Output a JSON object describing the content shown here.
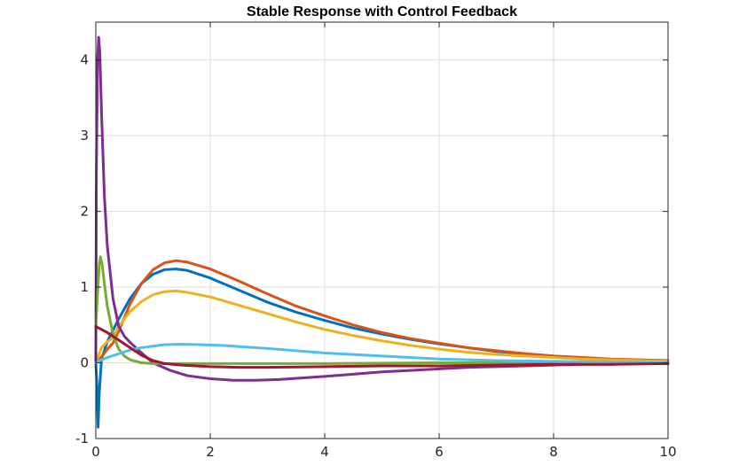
{
  "chart_data": {
    "type": "line",
    "title": "Stable Response with Control Feedback",
    "xlabel": "",
    "ylabel": "",
    "xlim": [
      0,
      10
    ],
    "ylim": [
      -1,
      4.5
    ],
    "xticks": [
      0,
      2,
      4,
      6,
      8,
      10
    ],
    "yticks": [
      -1,
      0,
      1,
      2,
      3,
      4
    ],
    "grid": true,
    "colors": [
      "#0072BD",
      "#D95319",
      "#EDB120",
      "#7E2F8E",
      "#77AC30",
      "#4DBEEE",
      "#A2142F"
    ],
    "series": [
      {
        "color": "#0072BD",
        "points": [
          [
            0,
            0
          ],
          [
            0.02,
            -0.3
          ],
          [
            0.04,
            -0.85
          ],
          [
            0.06,
            -0.4
          ],
          [
            0.1,
            0.05
          ],
          [
            0.2,
            0.28
          ],
          [
            0.4,
            0.58
          ],
          [
            0.6,
            0.85
          ],
          [
            0.8,
            1.05
          ],
          [
            1.0,
            1.17
          ],
          [
            1.2,
            1.23
          ],
          [
            1.4,
            1.24
          ],
          [
            1.6,
            1.22
          ],
          [
            2.0,
            1.12
          ],
          [
            2.5,
            0.96
          ],
          [
            3.0,
            0.8
          ],
          [
            3.5,
            0.67
          ],
          [
            4.0,
            0.56
          ],
          [
            4.5,
            0.46
          ],
          [
            5.0,
            0.38
          ],
          [
            5.5,
            0.31
          ],
          [
            6.0,
            0.25
          ],
          [
            6.5,
            0.2
          ],
          [
            7.0,
            0.15
          ],
          [
            7.5,
            0.12
          ],
          [
            8.0,
            0.09
          ],
          [
            8.5,
            0.06
          ],
          [
            9.0,
            0.04
          ],
          [
            9.5,
            0.02
          ],
          [
            10.0,
            0.01
          ]
        ]
      },
      {
        "color": "#D95319",
        "points": [
          [
            0,
            0
          ],
          [
            0.05,
            0.03
          ],
          [
            0.1,
            0.08
          ],
          [
            0.2,
            0.18
          ],
          [
            0.3,
            0.26
          ],
          [
            0.4,
            0.42
          ],
          [
            0.6,
            0.78
          ],
          [
            0.8,
            1.05
          ],
          [
            1.0,
            1.23
          ],
          [
            1.2,
            1.32
          ],
          [
            1.4,
            1.35
          ],
          [
            1.6,
            1.33
          ],
          [
            2.0,
            1.24
          ],
          [
            2.5,
            1.08
          ],
          [
            3.0,
            0.91
          ],
          [
            3.5,
            0.75
          ],
          [
            4.0,
            0.62
          ],
          [
            4.5,
            0.5
          ],
          [
            5.0,
            0.4
          ],
          [
            5.5,
            0.32
          ],
          [
            6.0,
            0.26
          ],
          [
            6.5,
            0.2
          ],
          [
            7.0,
            0.16
          ],
          [
            7.5,
            0.12
          ],
          [
            8.0,
            0.09
          ],
          [
            8.5,
            0.07
          ],
          [
            9.0,
            0.05
          ],
          [
            9.5,
            0.04
          ],
          [
            10.0,
            0.03
          ]
        ]
      },
      {
        "color": "#EDB120",
        "points": [
          [
            0,
            0
          ],
          [
            0.05,
            0.1
          ],
          [
            0.1,
            0.2
          ],
          [
            0.2,
            0.28
          ],
          [
            0.3,
            0.33
          ],
          [
            0.4,
            0.48
          ],
          [
            0.6,
            0.68
          ],
          [
            0.8,
            0.81
          ],
          [
            1.0,
            0.9
          ],
          [
            1.2,
            0.94
          ],
          [
            1.4,
            0.95
          ],
          [
            1.6,
            0.93
          ],
          [
            2.0,
            0.87
          ],
          [
            2.5,
            0.76
          ],
          [
            3.0,
            0.65
          ],
          [
            3.5,
            0.54
          ],
          [
            4.0,
            0.44
          ],
          [
            4.5,
            0.36
          ],
          [
            5.0,
            0.29
          ],
          [
            5.5,
            0.23
          ],
          [
            6.0,
            0.18
          ],
          [
            6.5,
            0.14
          ],
          [
            7.0,
            0.11
          ],
          [
            7.5,
            0.09
          ],
          [
            8.0,
            0.07
          ],
          [
            8.5,
            0.05
          ],
          [
            9.0,
            0.04
          ],
          [
            9.5,
            0.03
          ],
          [
            10.0,
            0.02
          ]
        ]
      },
      {
        "color": "#7E2F8E",
        "points": [
          [
            0,
            0
          ],
          [
            0.01,
            2.5
          ],
          [
            0.03,
            4.0
          ],
          [
            0.05,
            4.3
          ],
          [
            0.07,
            4.1
          ],
          [
            0.1,
            3.3
          ],
          [
            0.15,
            2.2
          ],
          [
            0.2,
            1.55
          ],
          [
            0.3,
            0.85
          ],
          [
            0.4,
            0.48
          ],
          [
            0.5,
            0.35
          ],
          [
            0.6,
            0.27
          ],
          [
            0.8,
            0.13
          ],
          [
            1.0,
            0.0
          ],
          [
            1.3,
            -0.1
          ],
          [
            1.6,
            -0.17
          ],
          [
            2.0,
            -0.21
          ],
          [
            2.4,
            -0.23
          ],
          [
            2.8,
            -0.23
          ],
          [
            3.2,
            -0.22
          ],
          [
            3.6,
            -0.2
          ],
          [
            4.0,
            -0.18
          ],
          [
            4.5,
            -0.15
          ],
          [
            5.0,
            -0.12
          ],
          [
            5.5,
            -0.1
          ],
          [
            6.0,
            -0.08
          ],
          [
            6.5,
            -0.06
          ],
          [
            7.0,
            -0.05
          ],
          [
            7.5,
            -0.04
          ],
          [
            8.0,
            -0.03
          ],
          [
            8.5,
            -0.02
          ],
          [
            9.0,
            -0.02
          ],
          [
            9.5,
            -0.01
          ],
          [
            10.0,
            -0.01
          ]
        ]
      },
      {
        "color": "#77AC30",
        "points": [
          [
            0,
            0.5
          ],
          [
            0.03,
            0.9
          ],
          [
            0.06,
            1.3
          ],
          [
            0.08,
            1.4
          ],
          [
            0.11,
            1.3
          ],
          [
            0.15,
            1.05
          ],
          [
            0.2,
            0.75
          ],
          [
            0.3,
            0.38
          ],
          [
            0.4,
            0.18
          ],
          [
            0.5,
            0.09
          ],
          [
            0.6,
            0.04
          ],
          [
            0.8,
            0.0
          ],
          [
            1.0,
            -0.01
          ],
          [
            1.5,
            -0.01
          ],
          [
            2.0,
            -0.01
          ],
          [
            3.0,
            -0.01
          ],
          [
            4.0,
            -0.01
          ],
          [
            6.0,
            0.0
          ],
          [
            8.0,
            0.0
          ],
          [
            10.0,
            0.0
          ]
        ]
      },
      {
        "color": "#4DBEEE",
        "points": [
          [
            0,
            0
          ],
          [
            0.05,
            0.02
          ],
          [
            0.1,
            0.04
          ],
          [
            0.2,
            0.07
          ],
          [
            0.4,
            0.12
          ],
          [
            0.6,
            0.17
          ],
          [
            0.8,
            0.2
          ],
          [
            1.0,
            0.22
          ],
          [
            1.2,
            0.24
          ],
          [
            1.5,
            0.245
          ],
          [
            1.8,
            0.24
          ],
          [
            2.2,
            0.23
          ],
          [
            2.6,
            0.21
          ],
          [
            3.0,
            0.19
          ],
          [
            3.5,
            0.16
          ],
          [
            4.0,
            0.13
          ],
          [
            4.5,
            0.11
          ],
          [
            5.0,
            0.09
          ],
          [
            5.5,
            0.07
          ],
          [
            6.0,
            0.05
          ],
          [
            6.5,
            0.04
          ],
          [
            7.0,
            0.03
          ],
          [
            8.0,
            0.02
          ],
          [
            9.0,
            0.01
          ],
          [
            10.0,
            0.0
          ]
        ]
      },
      {
        "color": "#A2142F",
        "points": [
          [
            0,
            0.48
          ],
          [
            0.2,
            0.4
          ],
          [
            0.4,
            0.3
          ],
          [
            0.6,
            0.2
          ],
          [
            0.8,
            0.1
          ],
          [
            1.0,
            0.03
          ],
          [
            1.2,
            -0.01
          ],
          [
            1.5,
            -0.03
          ],
          [
            2.0,
            -0.05
          ],
          [
            2.5,
            -0.06
          ],
          [
            3.0,
            -0.06
          ],
          [
            4.0,
            -0.05
          ],
          [
            5.0,
            -0.04
          ],
          [
            6.0,
            -0.04
          ],
          [
            7.0,
            -0.03
          ],
          [
            8.0,
            -0.02
          ],
          [
            9.0,
            -0.02
          ],
          [
            10.0,
            -0.01
          ]
        ]
      }
    ]
  }
}
